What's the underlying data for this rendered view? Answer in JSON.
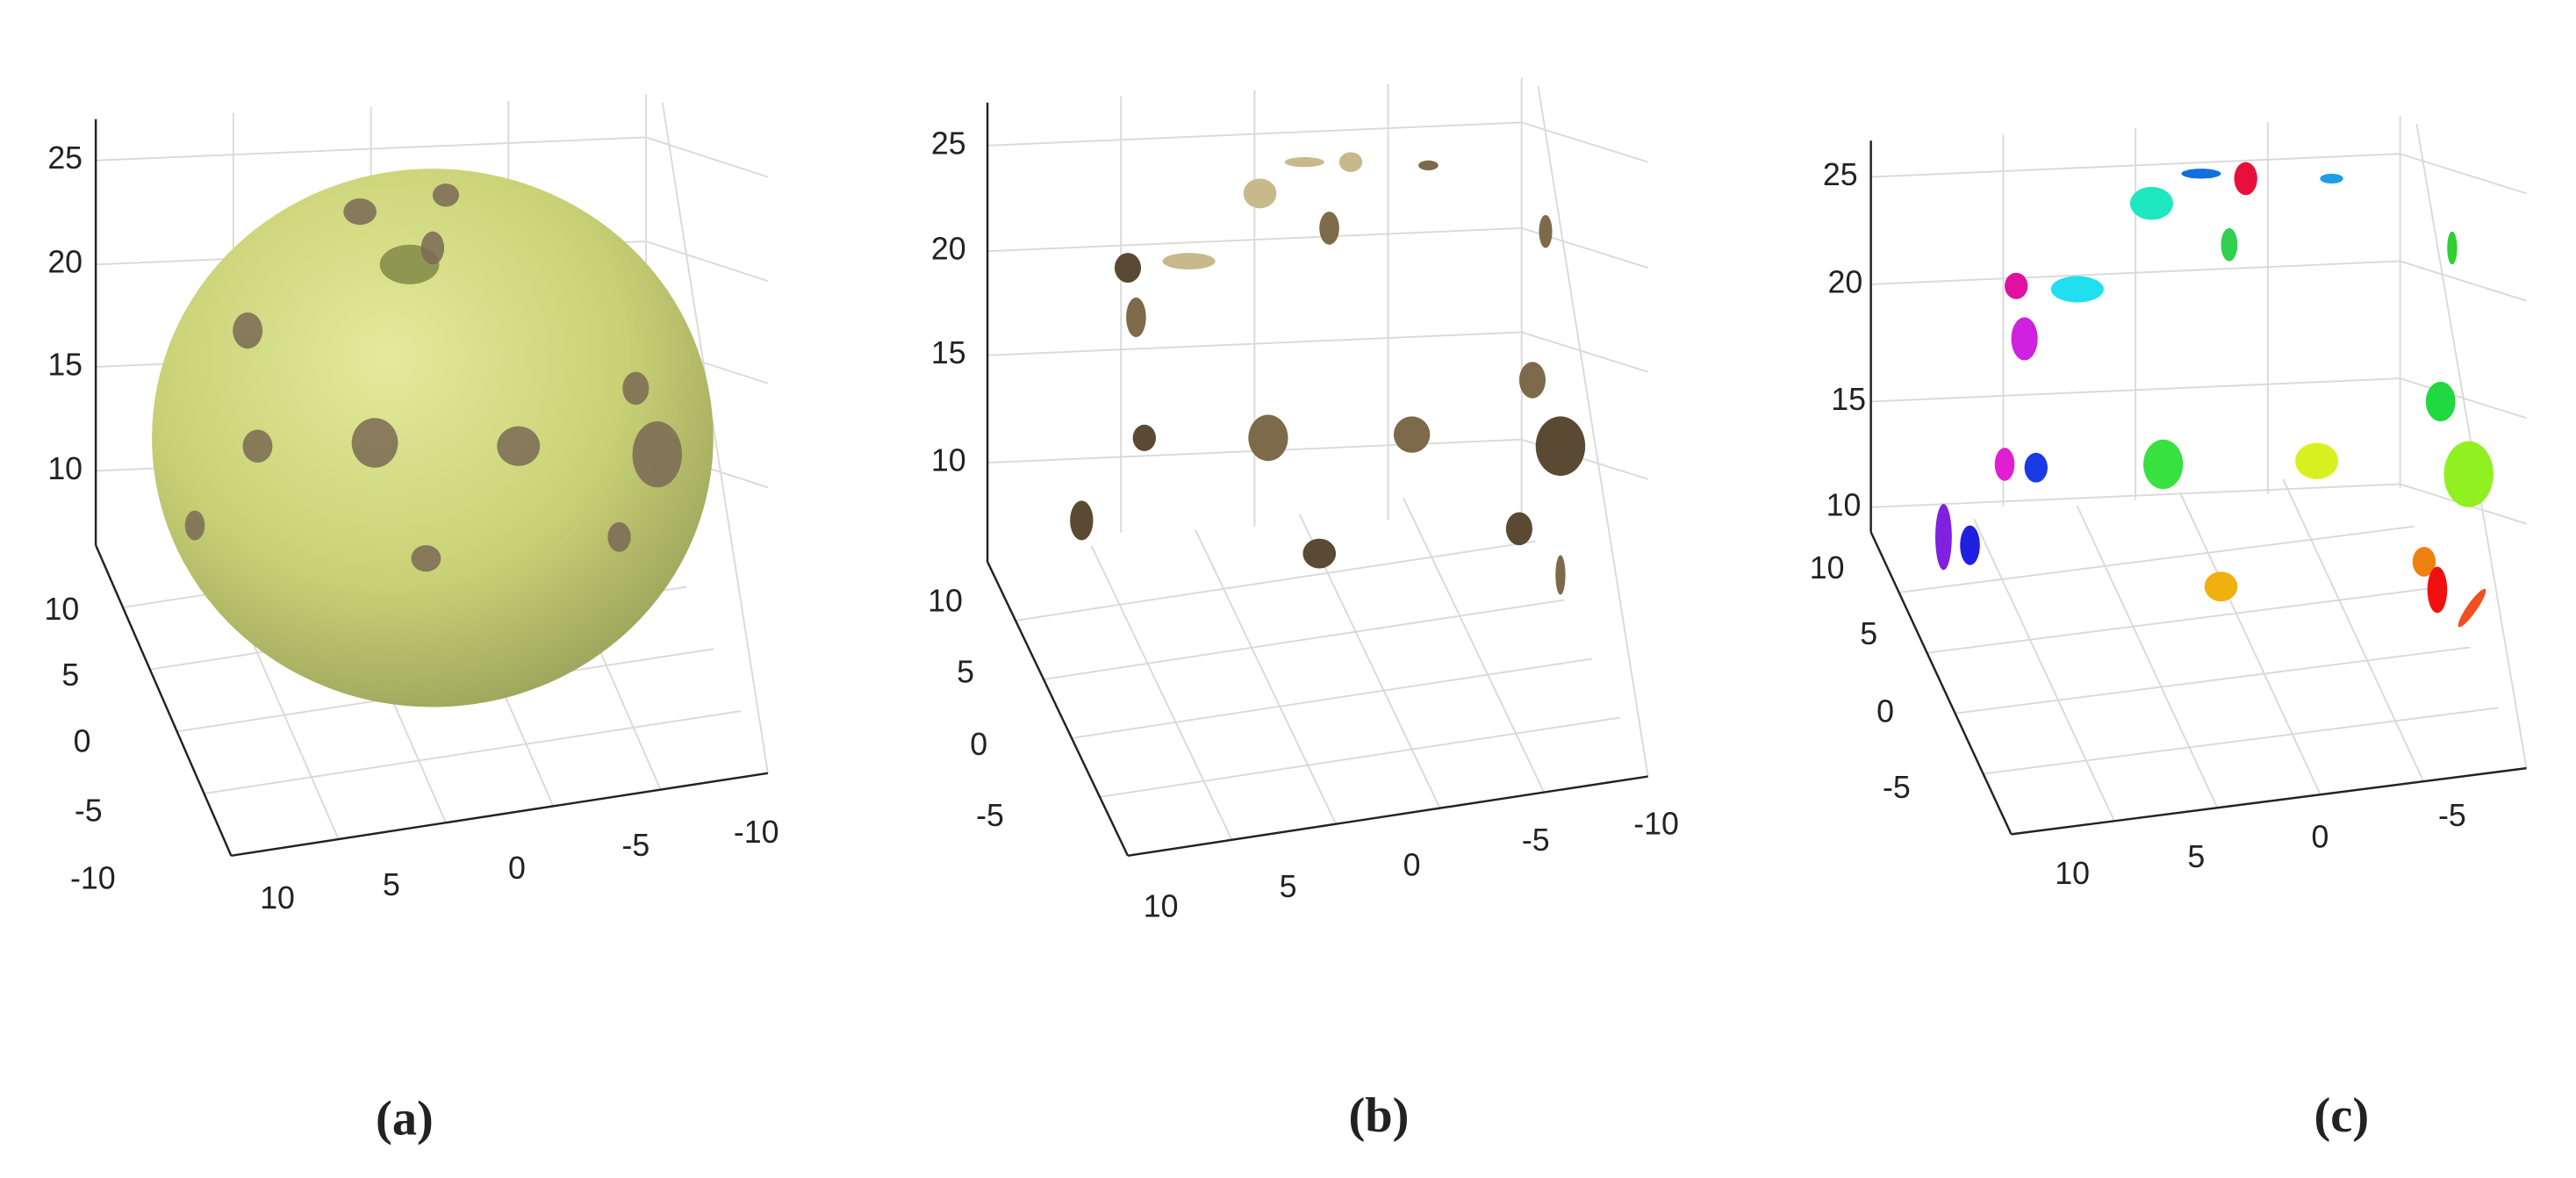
{
  "panels": [
    {
      "caption": "(a)",
      "z_ticks": [
        "25",
        "20",
        "15",
        "10"
      ],
      "y_ticks": [
        "10",
        "5",
        "0",
        "-5",
        "-10"
      ],
      "x_ticks": [
        "10",
        "5",
        "0",
        "-5",
        "-10"
      ]
    },
    {
      "caption": "(b)",
      "z_ticks": [
        "25",
        "20",
        "15",
        "10"
      ],
      "y_ticks": [
        "10",
        "5",
        "0",
        "-5"
      ],
      "x_ticks": [
        "10",
        "5",
        "0",
        "-5",
        "-10"
      ]
    },
    {
      "caption": "(c)",
      "z_ticks": [
        "25",
        "20",
        "15",
        "10"
      ],
      "y_ticks": [
        "10",
        "5",
        "0",
        "-5"
      ],
      "x_ticks": [
        "10",
        "5",
        "0",
        "-5"
      ]
    }
  ]
}
